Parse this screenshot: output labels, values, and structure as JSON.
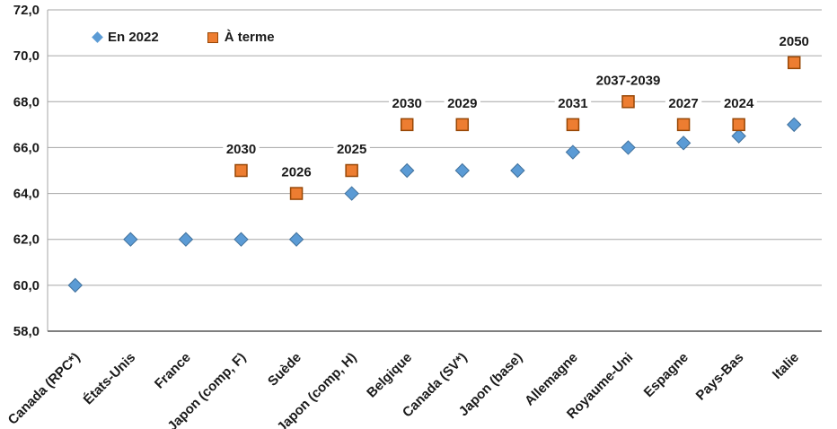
{
  "chart_data": {
    "type": "scatter",
    "title": "",
    "xlabel": "",
    "ylabel": "",
    "ylim": [
      58,
      72
    ],
    "ytick_step": 2,
    "ytick_labels": [
      "58,0",
      "60,0",
      "62,0",
      "64,0",
      "66,0",
      "68,0",
      "70,0",
      "72,0"
    ],
    "grid": true,
    "legend_position": "top-left-inside",
    "categories": [
      "Canada (RPC*)",
      "États-Unis",
      "France",
      "Japon (comp, F)",
      "Suède",
      "Japon (comp, H)",
      "Belgique",
      "Canada (SV*)",
      "Japon (base)",
      "Allemagne",
      "Royaume-Uni",
      "Espagne",
      "Pays-Bas",
      "Italie"
    ],
    "series": [
      {
        "name": "En 2022",
        "marker": "diamond",
        "color": "#5B9BD5",
        "border_color": "#41719C",
        "values": [
          60.0,
          62.0,
          62.0,
          62.0,
          62.0,
          64.0,
          65.0,
          65.0,
          65.0,
          65.8,
          66.0,
          66.2,
          66.5,
          67.0
        ]
      },
      {
        "name": "À terme",
        "marker": "square",
        "color": "#ED7D31",
        "border_color": "#974706",
        "values": [
          null,
          null,
          null,
          65.0,
          64.0,
          65.0,
          67.0,
          67.0,
          null,
          67.0,
          68.0,
          67.0,
          67.0,
          69.7
        ],
        "labels": [
          null,
          null,
          null,
          "2030",
          "2026",
          "2025",
          "2030",
          "2029",
          null,
          "2031",
          "2037-2039",
          "2027",
          "2024",
          "2050"
        ]
      }
    ]
  },
  "colors": {
    "gridline": "#A6A6A6",
    "y_axis_line": "#A6A6A6",
    "x_axis_line": "#7F7F7F",
    "text": "#1a1a1a",
    "background": "#ffffff"
  }
}
